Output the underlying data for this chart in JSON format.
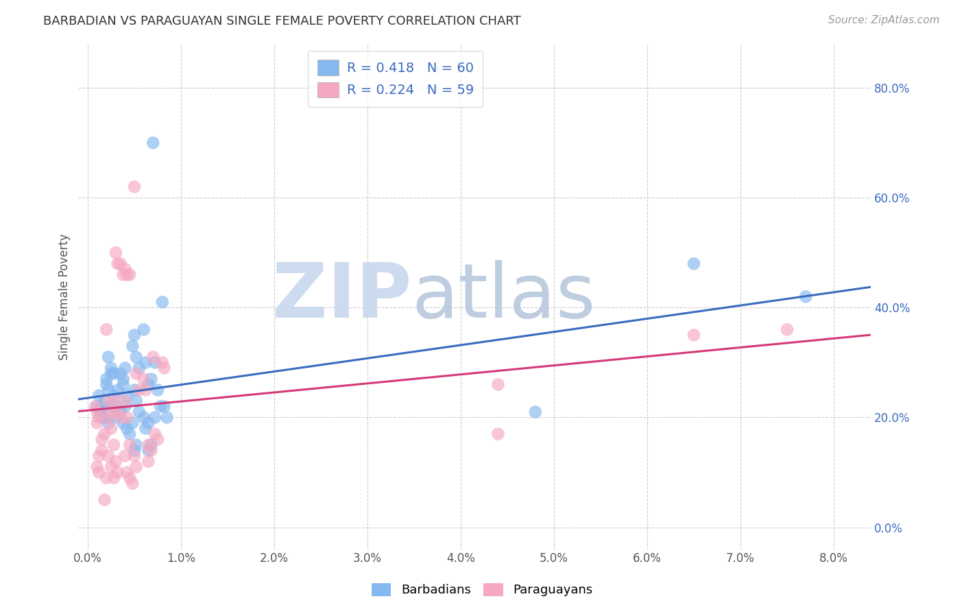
{
  "title": "BARBADIAN VS PARAGUAYAN SINGLE FEMALE POVERTY CORRELATION CHART",
  "source": "Source: ZipAtlas.com",
  "ylabel": "Single Female Poverty",
  "label_barbadians": "Barbadians",
  "label_paraguayans": "Paraguayans",
  "xlim": [
    -0.1,
    8.4
  ],
  "ylim": [
    -4.0,
    88.0
  ],
  "blue_color": "#85b8f0",
  "pink_color": "#f5a8c0",
  "blue_line_color": "#3a6bbf",
  "pink_line_color": "#d63878",
  "legend_R_blue": "R = 0.418",
  "legend_N_blue": "N = 60",
  "legend_R_pink": "R = 0.224",
  "legend_N_pink": "N = 59",
  "watermark_zip": "ZIP",
  "watermark_atlas": "atlas",
  "watermark_color_zip": "#c8d8ee",
  "watermark_color_atlas": "#b8c8de",
  "blue_points": [
    [
      0.1,
      22
    ],
    [
      0.12,
      24
    ],
    [
      0.13,
      21
    ],
    [
      0.15,
      20
    ],
    [
      0.18,
      23
    ],
    [
      0.2,
      27
    ],
    [
      0.22,
      25
    ],
    [
      0.25,
      28
    ],
    [
      0.15,
      22
    ],
    [
      0.18,
      20
    ],
    [
      0.2,
      26
    ],
    [
      0.22,
      31
    ],
    [
      0.25,
      29
    ],
    [
      0.28,
      28
    ],
    [
      0.3,
      20
    ],
    [
      0.3,
      22
    ],
    [
      0.32,
      25
    ],
    [
      0.28,
      24
    ],
    [
      0.25,
      22
    ],
    [
      0.22,
      19
    ],
    [
      0.35,
      28
    ],
    [
      0.38,
      26
    ],
    [
      0.4,
      29
    ],
    [
      0.38,
      27
    ],
    [
      0.42,
      24
    ],
    [
      0.35,
      21
    ],
    [
      0.4,
      22
    ],
    [
      0.38,
      19
    ],
    [
      0.42,
      18
    ],
    [
      0.45,
      17
    ],
    [
      0.5,
      35
    ],
    [
      0.48,
      33
    ],
    [
      0.52,
      31
    ],
    [
      0.55,
      29
    ],
    [
      0.5,
      25
    ],
    [
      0.52,
      23
    ],
    [
      0.55,
      21
    ],
    [
      0.48,
      19
    ],
    [
      0.52,
      15
    ],
    [
      0.5,
      14
    ],
    [
      0.6,
      36
    ],
    [
      0.62,
      30
    ],
    [
      0.65,
      26
    ],
    [
      0.68,
      27
    ],
    [
      0.6,
      20
    ],
    [
      0.62,
      18
    ],
    [
      0.65,
      19
    ],
    [
      0.68,
      15
    ],
    [
      0.65,
      14
    ],
    [
      0.7,
      70
    ],
    [
      0.72,
      30
    ],
    [
      0.75,
      25
    ],
    [
      0.78,
      22
    ],
    [
      0.72,
      20
    ],
    [
      0.8,
      41
    ],
    [
      0.82,
      22
    ],
    [
      0.85,
      20
    ],
    [
      4.8,
      21
    ],
    [
      7.7,
      42
    ],
    [
      6.5,
      48
    ]
  ],
  "pink_points": [
    [
      0.08,
      22
    ],
    [
      0.1,
      21
    ],
    [
      0.12,
      20
    ],
    [
      0.1,
      19
    ],
    [
      0.12,
      13
    ],
    [
      0.15,
      16
    ],
    [
      0.18,
      17
    ],
    [
      0.15,
      14
    ],
    [
      0.1,
      11
    ],
    [
      0.12,
      10
    ],
    [
      0.2,
      36
    ],
    [
      0.22,
      23
    ],
    [
      0.25,
      21
    ],
    [
      0.22,
      20
    ],
    [
      0.25,
      18
    ],
    [
      0.28,
      15
    ],
    [
      0.22,
      13
    ],
    [
      0.25,
      11
    ],
    [
      0.2,
      9
    ],
    [
      0.18,
      5
    ],
    [
      0.3,
      50
    ],
    [
      0.32,
      48
    ],
    [
      0.35,
      48
    ],
    [
      0.38,
      46
    ],
    [
      0.3,
      23
    ],
    [
      0.32,
      21
    ],
    [
      0.35,
      20
    ],
    [
      0.3,
      12
    ],
    [
      0.32,
      10
    ],
    [
      0.28,
      9
    ],
    [
      0.4,
      47
    ],
    [
      0.42,
      46
    ],
    [
      0.45,
      46
    ],
    [
      0.4,
      23
    ],
    [
      0.42,
      20
    ],
    [
      0.45,
      15
    ],
    [
      0.4,
      13
    ],
    [
      0.42,
      10
    ],
    [
      0.45,
      9
    ],
    [
      0.48,
      8
    ],
    [
      0.5,
      62
    ],
    [
      0.52,
      28
    ],
    [
      0.55,
      25
    ],
    [
      0.5,
      13
    ],
    [
      0.52,
      11
    ],
    [
      0.6,
      27
    ],
    [
      0.62,
      25
    ],
    [
      0.65,
      15
    ],
    [
      0.68,
      14
    ],
    [
      0.65,
      12
    ],
    [
      0.7,
      31
    ],
    [
      0.72,
      17
    ],
    [
      0.75,
      16
    ],
    [
      0.8,
      30
    ],
    [
      0.82,
      29
    ],
    [
      4.4,
      26
    ],
    [
      4.4,
      17
    ],
    [
      6.5,
      35
    ],
    [
      7.5,
      36
    ]
  ],
  "x_tick_positions": [
    0,
    1,
    2,
    3,
    4,
    5,
    6,
    7,
    8
  ],
  "x_tick_labels": [
    "0.0%",
    "1.0%",
    "2.0%",
    "3.0%",
    "4.0%",
    "5.0%",
    "6.0%",
    "7.0%",
    "8.0%"
  ],
  "y_tick_positions": [
    0,
    20,
    40,
    60,
    80
  ],
  "y_tick_labels": [
    "0.0%",
    "20.0%",
    "40.0%",
    "60.0%",
    "80.0%"
  ],
  "grid_y_positions": [
    0,
    20,
    40,
    60,
    80
  ],
  "grid_x_positions": [
    0,
    1,
    2,
    3,
    4,
    5,
    6,
    7,
    8
  ]
}
